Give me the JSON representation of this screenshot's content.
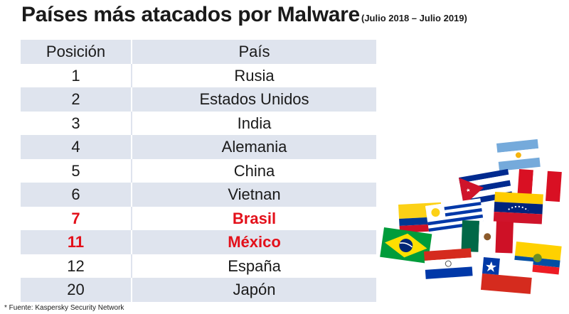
{
  "header": {
    "title": "Países más atacados por Malware",
    "subtitle": "(Julio 2018 – Julio 2019)"
  },
  "table": {
    "columns": [
      "Posición",
      "País"
    ],
    "rows": [
      {
        "position": "1",
        "country": "Rusia",
        "highlight": false
      },
      {
        "position": "2",
        "country": "Estados Unidos",
        "highlight": false
      },
      {
        "position": "3",
        "country": "India",
        "highlight": false
      },
      {
        "position": "4",
        "country": "Alemania",
        "highlight": false
      },
      {
        "position": "5",
        "country": "China",
        "highlight": false
      },
      {
        "position": "6",
        "country": "Vietnan",
        "highlight": false
      },
      {
        "position": "7",
        "country": "Brasil",
        "highlight": true
      },
      {
        "position": "11",
        "country": "México",
        "highlight": true
      },
      {
        "position": "12",
        "country": "España",
        "highlight": false
      },
      {
        "position": "20",
        "country": "Japón",
        "highlight": false
      }
    ]
  },
  "footnote": "* Fuente: Kaspersky Security Network",
  "colors": {
    "highlight": "#e3101a",
    "stripe": "#dfe4ee"
  },
  "illustration": {
    "name": "latin-american-flags-illustration",
    "flags": [
      "argentina",
      "cuba",
      "peru",
      "colombia",
      "uruguay",
      "venezuela",
      "brazil",
      "mexico",
      "ecuador",
      "paraguay",
      "chile"
    ]
  }
}
